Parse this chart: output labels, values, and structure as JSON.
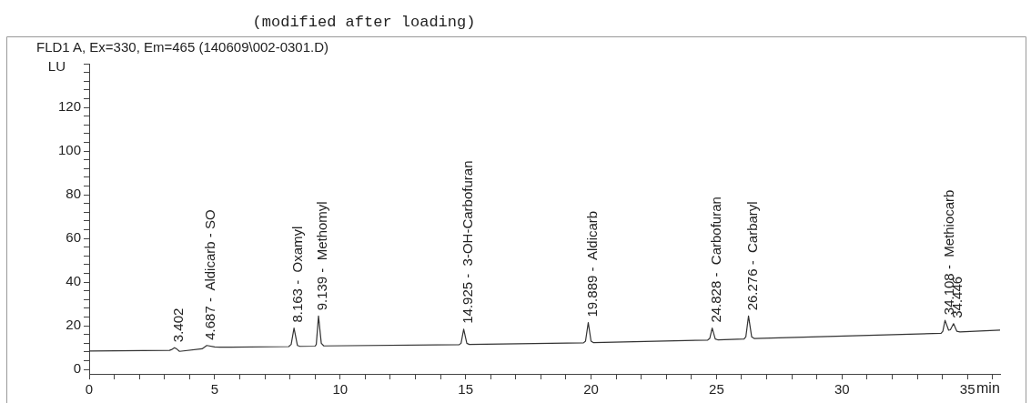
{
  "chart_data": {
    "type": "line",
    "title": "FLD1 A, Ex=330, Em=465 (140609\\002-0301.D)",
    "xlabel": "min",
    "ylabel": "LU",
    "x": [
      0,
      3.2,
      3.3,
      3.402,
      3.5,
      3.6,
      4.5,
      4.687,
      5.0,
      5.2,
      7.95,
      8.05,
      8.163,
      8.3,
      8.4,
      9.0,
      9.05,
      9.139,
      9.25,
      9.35,
      14.75,
      14.82,
      14.925,
      15.05,
      15.15,
      19.7,
      19.78,
      19.889,
      20.0,
      20.1,
      24.65,
      24.73,
      24.828,
      24.95,
      25.05,
      26.1,
      26.17,
      26.276,
      26.4,
      26.5,
      33.95,
      34.02,
      34.108,
      34.25,
      34.32,
      34.446,
      34.58,
      34.7,
      36.3
    ],
    "series": [
      {
        "color": "#333333",
        "values": [
          8.5,
          8.8,
          9.2,
          10,
          9.3,
          8.3,
          9.5,
          11,
          10.3,
          10.2,
          10.5,
          11.5,
          19,
          11,
          10.6,
          10.7,
          11.5,
          24.5,
          12,
          10.8,
          11.4,
          12,
          18.5,
          12,
          11.5,
          12.2,
          13,
          21.5,
          13,
          12.3,
          13.5,
          14.2,
          19,
          14,
          13.6,
          14,
          15,
          24.5,
          15,
          14.2,
          16.6,
          17.5,
          22.5,
          18,
          18.2,
          21,
          17.5,
          17.2,
          18
        ]
      }
    ],
    "xlim": [
      0,
      36.3
    ],
    "ylim": [
      -2,
      140
    ],
    "xticks": [
      0,
      {
        "value": 1,
        "label": null
      },
      {
        "value": 2,
        "label": null
      },
      {
        "value": 3,
        "label": null
      },
      {
        "value": 4,
        "label": null
      },
      5,
      {
        "value": 6,
        "label": null
      },
      {
        "value": 7,
        "label": null
      },
      {
        "value": 8,
        "label": null
      },
      {
        "value": 9,
        "label": null
      },
      10,
      {
        "value": 11,
        "label": null
      },
      {
        "value": 12,
        "label": null
      },
      {
        "value": 13,
        "label": null
      },
      {
        "value": 14,
        "label": null
      },
      15,
      {
        "value": 16,
        "label": null
      },
      {
        "value": 17,
        "label": null
      },
      {
        "value": 18,
        "label": null
      },
      {
        "value": 19,
        "label": null
      },
      20,
      {
        "value": 21,
        "label": null
      },
      {
        "value": 22,
        "label": null
      },
      {
        "value": 23,
        "label": null
      },
      {
        "value": 24,
        "label": null
      },
      25,
      {
        "value": 26,
        "label": null
      },
      {
        "value": 27,
        "label": null
      },
      {
        "value": 28,
        "label": null
      },
      {
        "value": 29,
        "label": null
      },
      30,
      {
        "value": 31,
        "label": null
      },
      {
        "value": 32,
        "label": null
      },
      {
        "value": 33,
        "label": null
      },
      {
        "value": 34,
        "label": null
      },
      35,
      {
        "value": 36,
        "label": null
      }
    ],
    "yticks": [
      0,
      {
        "value": 4,
        "label": null
      },
      {
        "value": 8,
        "label": null
      },
      {
        "value": 12,
        "label": null
      },
      {
        "value": 16,
        "label": null
      },
      20,
      {
        "value": 24,
        "label": null
      },
      {
        "value": 28,
        "label": null
      },
      {
        "value": 32,
        "label": null
      },
      {
        "value": 36,
        "label": null
      },
      40,
      {
        "value": 44,
        "label": null
      },
      {
        "value": 48,
        "label": null
      },
      {
        "value": 52,
        "label": null
      },
      {
        "value": 56,
        "label": null
      },
      60,
      {
        "value": 64,
        "label": null
      },
      {
        "value": 68,
        "label": null
      },
      {
        "value": 72,
        "label": null
      },
      {
        "value": 76,
        "label": null
      },
      80,
      {
        "value": 84,
        "label": null
      },
      {
        "value": 88,
        "label": null
      },
      {
        "value": 92,
        "label": null
      },
      {
        "value": 96,
        "label": null
      },
      100,
      {
        "value": 104,
        "label": null
      },
      {
        "value": 108,
        "label": null
      },
      {
        "value": 112,
        "label": null
      },
      {
        "value": 116,
        "label": null
      },
      120,
      {
        "value": 124,
        "label": null
      },
      {
        "value": 128,
        "label": null
      },
      {
        "value": 132,
        "label": null
      },
      {
        "value": 136,
        "label": null
      },
      {
        "value": 140,
        "label": null
      }
    ],
    "grid": false,
    "legend": false,
    "marker": "none",
    "line_style": "solid",
    "annotations": [
      "(modified after loading)",
      {
        "text": "3.402",
        "x": 3.402,
        "y": 10
      },
      {
        "text": "4.687 -  Aldicarb - SO",
        "x": 4.687,
        "y": 11
      },
      {
        "text": "8.163 -  Oxamyl",
        "x": 8.163,
        "y": 19
      },
      {
        "text": "9.139 -  Methomyl",
        "x": 9.139,
        "y": 24.5
      },
      {
        "text": "14.925 -  3-OH-Carbofuran",
        "x": 14.925,
        "y": 18.5
      },
      {
        "text": "19.889 -  Aldicarb",
        "x": 19.889,
        "y": 21.5
      },
      {
        "text": "24.828 -  Carbofuran",
        "x": 24.828,
        "y": 19
      },
      {
        "text": "26.276 -  Carbaryl",
        "x": 26.276,
        "y": 24.5
      },
      {
        "text": "34.108 -  Methiocarb",
        "x": 34.108,
        "y": 22.5
      },
      {
        "text": "34.446",
        "x": 34.446,
        "y": 21
      }
    ]
  }
}
